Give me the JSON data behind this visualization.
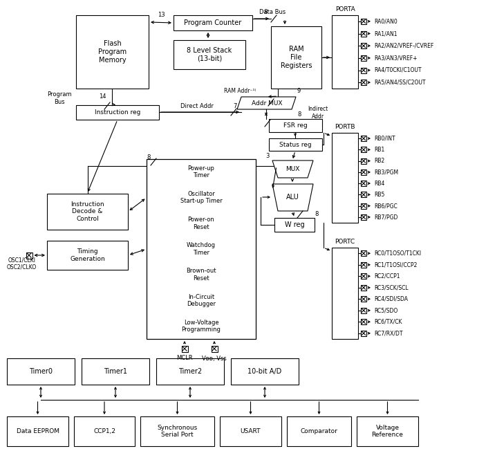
{
  "bg_color": "#ffffff",
  "line_color": "#000000",
  "porta_pins": [
    "RA0/AN0",
    "RA1/AN1",
    "RA2/AN2/VREF-/CVREF",
    "RA3/AN3/VREF+",
    "RA4/T0CKI/C1OUT",
    "RA5/AN4/SS/C2OUT"
  ],
  "portb_pins": [
    "RB0/INT",
    "RB1",
    "RB2",
    "RB3/PGM",
    "RB4",
    "RB5",
    "RB6/PGC",
    "RB7/PGD"
  ],
  "portc_pins": [
    "RC0/T1OSO/T1CKI",
    "RC1/T1OSI/CCP2",
    "RC2/CCP1",
    "RC3/SCK/SCL",
    "RC4/SDI/SDA",
    "RC5/SDO",
    "RC6/TX/CK",
    "RC7/RX/DT"
  ],
  "timer_labels": [
    "Timer0",
    "Timer1",
    "Timer2",
    "10-bit A/D"
  ],
  "bottom_labels": [
    "Data EEPROM",
    "CCP1,2",
    "Synchronous\nSerial Port",
    "USART",
    "Comparator",
    "Voltage\nReference"
  ],
  "special_labels": [
    "Power-up\nTimer",
    "Oscillator\nStart-up Timer",
    "Power-on\nReset",
    "Watchdog\nTimer",
    "Brown-out\nReset",
    "In-Circuit\nDebugger",
    "Low-Voltage\nProgramming"
  ]
}
